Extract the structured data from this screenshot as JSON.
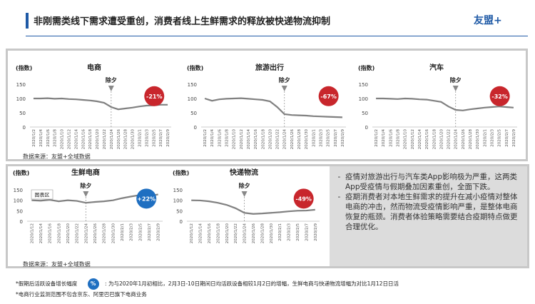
{
  "header": {
    "title": "非刚需类线下需求遭受重创，消费者线上生鲜需求的释放被快递物流抑制",
    "logo": "友盟+"
  },
  "top_source": "数据来源：友盟+全域数据",
  "bottom_source": "数据来源：友盟+全域数据",
  "tooltip": "图表区",
  "chart_data": [
    {
      "type": "line",
      "title": "电商",
      "ylabel": "(指数)",
      "annotation": {
        "text": "除夕",
        "x": "2020/1/24"
      },
      "badge": {
        "text": "-21%",
        "color": "#c8262c"
      },
      "x": [
        "2020/1/2",
        "2020/1/4",
        "2020/1/6",
        "2020/1/8",
        "2020/1/10",
        "2020/1/12",
        "2020/1/14",
        "2020/1/16",
        "2020/1/18",
        "2020/1/20",
        "2020/1/22",
        "2020/1/24",
        "2020/1/26",
        "2020/1/28",
        "2020/1/30",
        "2020/2/1",
        "2020/2/3",
        "2020/2/5",
        "2020/2/7",
        "2020/2/9"
      ],
      "values": [
        100,
        100,
        101,
        99,
        100,
        98,
        97,
        95,
        93,
        90,
        85,
        70,
        62,
        65,
        68,
        72,
        75,
        76,
        78,
        78
      ],
      "color": "#808080",
      "ylim": [
        0,
        150
      ],
      "yticks": [
        0,
        50,
        100,
        150
      ]
    },
    {
      "type": "line",
      "title": "旅游出行",
      "ylabel": "(指数)",
      "annotation": {
        "text": "除夕",
        "x": "2020/1/24"
      },
      "badge": {
        "text": "-67%",
        "color": "#c8262c"
      },
      "x": [
        "2020/1/2",
        "2020/1/4",
        "2020/1/6",
        "2020/1/8",
        "2020/1/10",
        "2020/1/12",
        "2020/1/14",
        "2020/1/16",
        "2020/1/18",
        "2020/1/20",
        "2020/1/22",
        "2020/1/24",
        "2020/1/26",
        "2020/1/28",
        "2020/1/30",
        "2020/2/1",
        "2020/2/3",
        "2020/2/5",
        "2020/2/7",
        "2020/2/9"
      ],
      "values": [
        100,
        92,
        97,
        99,
        100,
        101,
        99,
        97,
        95,
        90,
        70,
        45,
        42,
        41,
        40,
        38,
        37,
        36,
        35,
        34
      ],
      "color": "#808080",
      "ylim": [
        0,
        150
      ],
      "yticks": [
        0,
        50,
        100,
        150
      ]
    },
    {
      "type": "line",
      "title": "汽车",
      "ylabel": "(指数)",
      "annotation": {
        "text": "除夕",
        "x": "2020/1/24"
      },
      "badge": {
        "text": "-32%",
        "color": "#c8262c"
      },
      "x": [
        "2020/1/2",
        "2020/1/4",
        "2020/1/6",
        "2020/1/8",
        "2020/1/10",
        "2020/1/12",
        "2020/1/14",
        "2020/1/16",
        "2020/1/18",
        "2020/1/20",
        "2020/1/22",
        "2020/1/24",
        "2020/1/26",
        "2020/1/28",
        "2020/1/30",
        "2020/2/1",
        "2020/2/3",
        "2020/2/5",
        "2020/2/7",
        "2020/2/9"
      ],
      "values": [
        100,
        100,
        99,
        98,
        100,
        99,
        97,
        96,
        92,
        88,
        72,
        60,
        58,
        62,
        65,
        68,
        70,
        72,
        70,
        68
      ],
      "color": "#808080",
      "ylim": [
        0,
        150
      ],
      "yticks": [
        0,
        50,
        100,
        150
      ]
    },
    {
      "type": "line",
      "title": "生鲜电商",
      "ylabel": "(指数)",
      "annotation": {
        "text": "除夕",
        "x": "2020/1/24"
      },
      "badge": {
        "text": "+22%",
        "color": "#1f6fc1"
      },
      "x": [
        "2020/1/12",
        "2020/1/14",
        "2020/1/16",
        "2020/1/18",
        "2020/1/20",
        "2020/1/22",
        "2020/1/24",
        "2020/1/26",
        "2020/1/28",
        "2020/1/30",
        "2020/2/1",
        "2020/2/3",
        "2020/2/5",
        "2020/2/7",
        "2020/2/9"
      ],
      "values": [
        100,
        98,
        102,
        95,
        100,
        97,
        88,
        92,
        95,
        100,
        110,
        118,
        125,
        120,
        128
      ],
      "color": "#808080",
      "ylim": [
        0,
        150
      ],
      "yticks": [
        0,
        50,
        100,
        150
      ]
    },
    {
      "type": "line",
      "title": "快递物流",
      "ylabel": "(指数)",
      "annotation": {
        "text": "除夕",
        "x": "2020/1/24"
      },
      "badge": {
        "text": "-49%",
        "color": "#c8262c"
      },
      "x": [
        "2020/1/12",
        "2020/1/14",
        "2020/1/16",
        "2020/1/18",
        "2020/1/20",
        "2020/1/22",
        "2020/1/24",
        "2020/1/26",
        "2020/1/28",
        "2020/1/30",
        "2020/2/1",
        "2020/2/3",
        "2020/2/5",
        "2020/2/7",
        "2020/2/9"
      ],
      "values": [
        100,
        99,
        95,
        88,
        78,
        62,
        40,
        35,
        37,
        40,
        43,
        47,
        50,
        51,
        55
      ],
      "color": "#808080",
      "ylim": [
        0,
        150
      ],
      "yticks": [
        0,
        50,
        100,
        150
      ]
    }
  ],
  "notes": {
    "bullets": [
      "疫情对旅游出行与汽车类App影响极为严重，这两类App受疫情与假期叠加因素重创，全面下跌。",
      "疫期消费者对本地生鲜需求的提升在减小疫情对整体电商的冲击，然而物流受疫情影响严重，是整体电商恢复的瓶颈。消费者体验策略需要结合疫期特点做更合理优化。"
    ]
  },
  "footer": {
    "label": "*假期后活跃设备增长幅度",
    "badge": "%",
    "text": ": 为与2020年1月初相比，2月3日-10日期间日均活跃设备相较1月2日的增幅，生鲜电商与快递物流增幅为对比1月12日日活",
    "note": "*电商行业监测范围不包含京东、阿里巴巴旗下电商业务"
  }
}
